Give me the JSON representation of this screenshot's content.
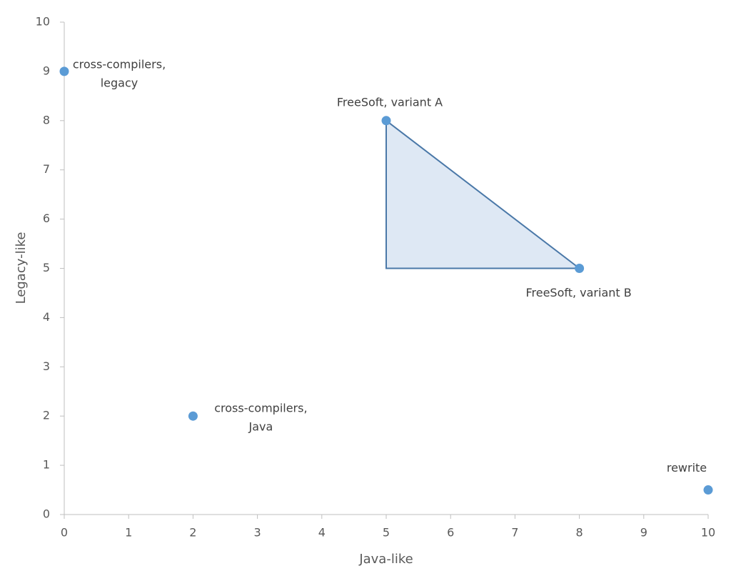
{
  "chart_data": {
    "type": "scatter",
    "x_label": "Java-like",
    "y_label": "Legacy-like",
    "series": [
      {
        "name": "solutions",
        "color": "#5b9bd5",
        "x": [
          0,
          2,
          5,
          8,
          10
        ],
        "values": [
          9,
          2,
          8,
          5,
          0.5
        ],
        "labels": [
          [
            "cross-compilers,",
            "legacy"
          ],
          [
            "cross-compilers,",
            "Java"
          ],
          [
            "FreeSoft, variant A"
          ],
          [
            "FreeSoft, variant B"
          ],
          [
            "rewrite"
          ]
        ]
      }
    ],
    "shape": {
      "x": [
        5,
        5,
        8
      ],
      "y": [
        8,
        5,
        5
      ],
      "fill": "#dee8f4",
      "stroke": "#4a78a8"
    },
    "xlim": [
      0,
      10
    ],
    "ylim": [
      0,
      10
    ],
    "xticks": [
      0,
      1,
      2,
      3,
      4,
      5,
      6,
      7,
      8,
      9,
      10
    ],
    "yticks": [
      0,
      1,
      2,
      3,
      4,
      5,
      6,
      7,
      8,
      9,
      10
    ],
    "grid": false
  }
}
